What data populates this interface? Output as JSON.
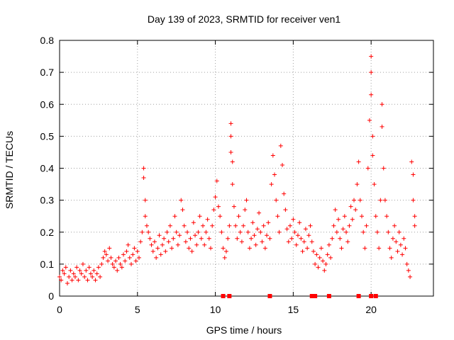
{
  "chart_data": {
    "type": "scatter",
    "title": "Day 139 of 2023, SRMTID for receiver ven1",
    "xlabel": "GPS time / hours",
    "ylabel": "SRMTID / TECUs",
    "xlim": [
      0,
      24
    ],
    "ylim": [
      0,
      0.8
    ],
    "xticks": [
      0,
      5,
      10,
      15,
      20
    ],
    "yticks": [
      0,
      0.1,
      0.2,
      0.3,
      0.4,
      0.5,
      0.6,
      0.7,
      0.8
    ],
    "grid": true,
    "marker": "+",
    "color": "#ff0000",
    "series": [
      {
        "name": "SRMTID",
        "points": [
          [
            0.0,
            0.06
          ],
          [
            0.1,
            0.05
          ],
          [
            0.2,
            0.08
          ],
          [
            0.3,
            0.07
          ],
          [
            0.4,
            0.09
          ],
          [
            0.5,
            0.04
          ],
          [
            0.6,
            0.06
          ],
          [
            0.7,
            0.08
          ],
          [
            0.8,
            0.05
          ],
          [
            0.9,
            0.07
          ],
          [
            1.0,
            0.06
          ],
          [
            1.1,
            0.09
          ],
          [
            1.2,
            0.05
          ],
          [
            1.3,
            0.08
          ],
          [
            1.4,
            0.07
          ],
          [
            1.5,
            0.1
          ],
          [
            1.6,
            0.06
          ],
          [
            1.7,
            0.08
          ],
          [
            1.8,
            0.05
          ],
          [
            1.9,
            0.09
          ],
          [
            2.0,
            0.07
          ],
          [
            2.1,
            0.06
          ],
          [
            2.2,
            0.08
          ],
          [
            2.3,
            0.05
          ],
          [
            2.4,
            0.07
          ],
          [
            2.5,
            0.09
          ],
          [
            2.6,
            0.06
          ],
          [
            2.7,
            0.1
          ],
          [
            2.8,
            0.12
          ],
          [
            2.9,
            0.14
          ],
          [
            3.0,
            0.13
          ],
          [
            3.1,
            0.11
          ],
          [
            3.2,
            0.15
          ],
          [
            3.3,
            0.12
          ],
          [
            3.4,
            0.1
          ],
          [
            3.5,
            0.09
          ],
          [
            3.6,
            0.11
          ],
          [
            3.7,
            0.08
          ],
          [
            3.8,
            0.12
          ],
          [
            3.9,
            0.1
          ],
          [
            4.0,
            0.09
          ],
          [
            4.1,
            0.13
          ],
          [
            4.2,
            0.11
          ],
          [
            4.3,
            0.14
          ],
          [
            4.4,
            0.16
          ],
          [
            4.5,
            0.12
          ],
          [
            4.6,
            0.1
          ],
          [
            4.7,
            0.13
          ],
          [
            4.8,
            0.15
          ],
          [
            4.9,
            0.11
          ],
          [
            5.0,
            0.14
          ],
          [
            5.1,
            0.12
          ],
          [
            5.2,
            0.17
          ],
          [
            5.3,
            0.2
          ],
          [
            5.4,
            0.4
          ],
          [
            5.4,
            0.37
          ],
          [
            5.5,
            0.3
          ],
          [
            5.5,
            0.25
          ],
          [
            5.6,
            0.22
          ],
          [
            5.7,
            0.2
          ],
          [
            5.8,
            0.18
          ],
          [
            5.9,
            0.16
          ],
          [
            6.0,
            0.14
          ],
          [
            6.1,
            0.17
          ],
          [
            6.2,
            0.12
          ],
          [
            6.3,
            0.15
          ],
          [
            6.4,
            0.19
          ],
          [
            6.5,
            0.13
          ],
          [
            6.6,
            0.16
          ],
          [
            6.7,
            0.18
          ],
          [
            6.8,
            0.14
          ],
          [
            6.9,
            0.2
          ],
          [
            7.0,
            0.17
          ],
          [
            7.1,
            0.22
          ],
          [
            7.2,
            0.15
          ],
          [
            7.3,
            0.18
          ],
          [
            7.4,
            0.25
          ],
          [
            7.5,
            0.2
          ],
          [
            7.6,
            0.16
          ],
          [
            7.7,
            0.19
          ],
          [
            7.8,
            0.3
          ],
          [
            7.9,
            0.27
          ],
          [
            8.0,
            0.22
          ],
          [
            8.1,
            0.17
          ],
          [
            8.2,
            0.2
          ],
          [
            8.3,
            0.15
          ],
          [
            8.4,
            0.18
          ],
          [
            8.5,
            0.14
          ],
          [
            8.6,
            0.23
          ],
          [
            8.7,
            0.19
          ],
          [
            8.8,
            0.16
          ],
          [
            8.9,
            0.2
          ],
          [
            9.0,
            0.25
          ],
          [
            9.1,
            0.18
          ],
          [
            9.2,
            0.22
          ],
          [
            9.3,
            0.16
          ],
          [
            9.4,
            0.2
          ],
          [
            9.5,
            0.24
          ],
          [
            9.6,
            0.18
          ],
          [
            9.7,
            0.15
          ],
          [
            9.8,
            0.22
          ],
          [
            9.9,
            0.27
          ],
          [
            10.0,
            0.31
          ],
          [
            10.1,
            0.36
          ],
          [
            10.2,
            0.28
          ],
          [
            10.3,
            0.25
          ],
          [
            10.4,
            0.2
          ],
          [
            10.5,
            0.15
          ],
          [
            10.6,
            0.12
          ],
          [
            10.7,
            0.14
          ],
          [
            10.8,
            0.18
          ],
          [
            10.9,
            0.22
          ],
          [
            11.0,
            0.54
          ],
          [
            11.0,
            0.5
          ],
          [
            11.0,
            0.45
          ],
          [
            11.1,
            0.42
          ],
          [
            11.1,
            0.35
          ],
          [
            11.2,
            0.28
          ],
          [
            11.3,
            0.22
          ],
          [
            11.4,
            0.18
          ],
          [
            11.5,
            0.25
          ],
          [
            11.6,
            0.2
          ],
          [
            11.7,
            0.17
          ],
          [
            11.8,
            0.22
          ],
          [
            11.9,
            0.27
          ],
          [
            12.0,
            0.3
          ],
          [
            12.1,
            0.2
          ],
          [
            12.2,
            0.15
          ],
          [
            12.3,
            0.18
          ],
          [
            12.4,
            0.23
          ],
          [
            12.5,
            0.19
          ],
          [
            12.6,
            0.16
          ],
          [
            12.7,
            0.21
          ],
          [
            12.8,
            0.26
          ],
          [
            12.9,
            0.2
          ],
          [
            13.0,
            0.17
          ],
          [
            13.1,
            0.22
          ],
          [
            13.2,
            0.15
          ],
          [
            13.3,
            0.19
          ],
          [
            13.4,
            0.23
          ],
          [
            13.5,
            0.18
          ],
          [
            13.6,
            0.35
          ],
          [
            13.7,
            0.44
          ],
          [
            13.8,
            0.38
          ],
          [
            13.9,
            0.3
          ],
          [
            14.0,
            0.25
          ],
          [
            14.1,
            0.2
          ],
          [
            14.2,
            0.47
          ],
          [
            14.3,
            0.41
          ],
          [
            14.4,
            0.32
          ],
          [
            14.5,
            0.27
          ],
          [
            14.6,
            0.21
          ],
          [
            14.7,
            0.17
          ],
          [
            14.8,
            0.22
          ],
          [
            14.9,
            0.18
          ],
          [
            15.0,
            0.24
          ],
          [
            15.1,
            0.2
          ],
          [
            15.2,
            0.16
          ],
          [
            15.3,
            0.19
          ],
          [
            15.4,
            0.23
          ],
          [
            15.5,
            0.18
          ],
          [
            15.6,
            0.14
          ],
          [
            15.7,
            0.17
          ],
          [
            15.8,
            0.21
          ],
          [
            15.9,
            0.15
          ],
          [
            16.0,
            0.19
          ],
          [
            16.1,
            0.22
          ],
          [
            16.2,
            0.17
          ],
          [
            16.3,
            0.14
          ],
          [
            16.4,
            0.1
          ],
          [
            16.5,
            0.13
          ],
          [
            16.6,
            0.09
          ],
          [
            16.7,
            0.12
          ],
          [
            16.8,
            0.15
          ],
          [
            16.9,
            0.11
          ],
          [
            17.0,
            0.08
          ],
          [
            17.1,
            0.1
          ],
          [
            17.2,
            0.13
          ],
          [
            17.3,
            0.16
          ],
          [
            17.4,
            0.12
          ],
          [
            17.5,
            0.18
          ],
          [
            17.6,
            0.22
          ],
          [
            17.7,
            0.27
          ],
          [
            17.8,
            0.2
          ],
          [
            17.9,
            0.24
          ],
          [
            18.0,
            0.18
          ],
          [
            18.1,
            0.15
          ],
          [
            18.2,
            0.21
          ],
          [
            18.3,
            0.25
          ],
          [
            18.4,
            0.2
          ],
          [
            18.5,
            0.17
          ],
          [
            18.6,
            0.22
          ],
          [
            18.7,
            0.28
          ],
          [
            18.8,
            0.24
          ],
          [
            18.9,
            0.3
          ],
          [
            19.0,
            0.27
          ],
          [
            19.1,
            0.35
          ],
          [
            19.2,
            0.42
          ],
          [
            19.3,
            0.3
          ],
          [
            19.4,
            0.25
          ],
          [
            19.5,
            0.2
          ],
          [
            19.6,
            0.15
          ],
          [
            19.7,
            0.22
          ],
          [
            19.8,
            0.4
          ],
          [
            19.9,
            0.55
          ],
          [
            20.0,
            0.75
          ],
          [
            20.0,
            0.7
          ],
          [
            20.0,
            0.63
          ],
          [
            20.1,
            0.5
          ],
          [
            20.1,
            0.44
          ],
          [
            20.2,
            0.35
          ],
          [
            20.3,
            0.25
          ],
          [
            20.4,
            0.2
          ],
          [
            20.5,
            0.15
          ],
          [
            20.6,
            0.3
          ],
          [
            20.7,
            0.6
          ],
          [
            20.7,
            0.53
          ],
          [
            20.8,
            0.4
          ],
          [
            20.9,
            0.3
          ],
          [
            21.0,
            0.25
          ],
          [
            21.1,
            0.2
          ],
          [
            21.2,
            0.15
          ],
          [
            21.3,
            0.12
          ],
          [
            21.4,
            0.18
          ],
          [
            21.5,
            0.22
          ],
          [
            21.6,
            0.17
          ],
          [
            21.7,
            0.14
          ],
          [
            21.8,
            0.2
          ],
          [
            21.9,
            0.16
          ],
          [
            22.0,
            0.13
          ],
          [
            22.1,
            0.18
          ],
          [
            22.2,
            0.15
          ],
          [
            22.3,
            0.1
          ],
          [
            22.4,
            0.08
          ],
          [
            22.5,
            0.06
          ],
          [
            22.6,
            0.42
          ],
          [
            22.7,
            0.38
          ],
          [
            22.7,
            0.3
          ],
          [
            22.8,
            0.25
          ],
          [
            22.8,
            0.22
          ]
        ]
      }
    ],
    "zero_markers_x": [
      10.5,
      10.9,
      13.5,
      16.2,
      16.4,
      17.3,
      19.2,
      20.0,
      20.3
    ]
  }
}
